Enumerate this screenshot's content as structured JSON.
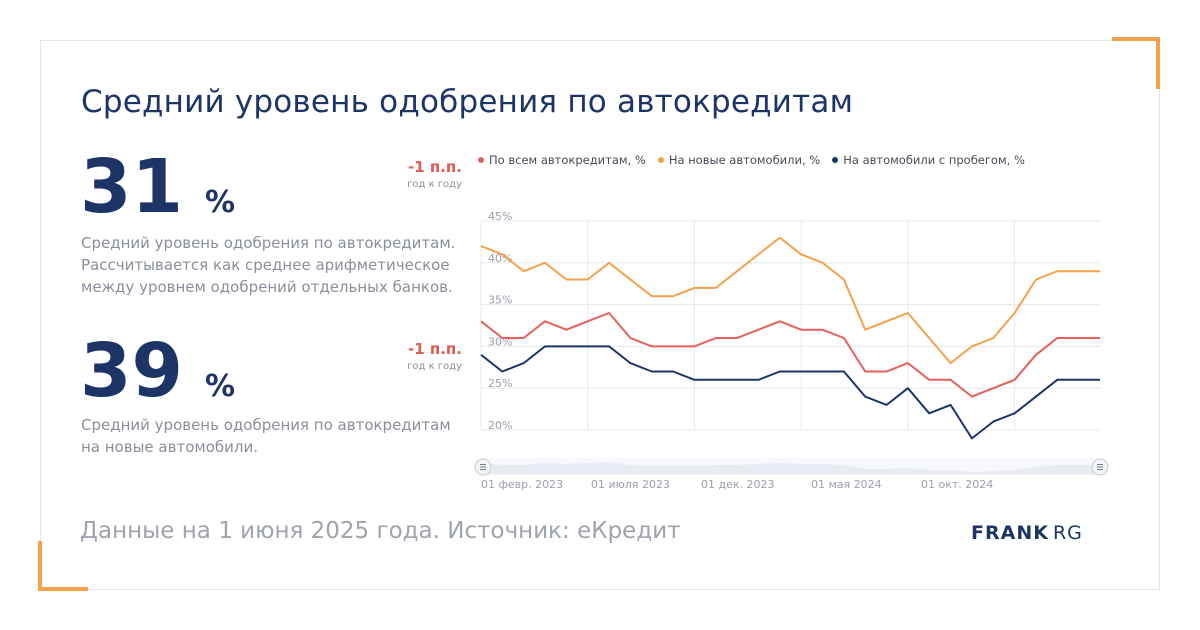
{
  "title": "Средний уровень одобрения по автокредитам",
  "kpis": [
    {
      "value": "31",
      "unit": "%",
      "delta": "-1 п.п.",
      "delta_note": "год к году",
      "description": "Средний уровень одобрения по автокредитам. Рассчитывается как среднее арифметическое между уровнем одобрений отдельных банков."
    },
    {
      "value": "39",
      "unit": "%",
      "delta": "-1 п.п.",
      "delta_note": "год к году",
      "description": "Средний уровень одобрения по автокредитам на новые автомобили."
    }
  ],
  "footer": "Данные на 1 июня 2025 года. Источник: еКредит",
  "logo": {
    "main": "FRANK",
    "suffix": "RG"
  },
  "colors": {
    "all": "#e5605a",
    "new": "#f4a24a",
    "used": "#1d3566",
    "accent": "#f4a24a"
  },
  "chart_data": {
    "type": "line",
    "x_tick_labels": [
      "01 февр. 2023",
      "01 июля 2023",
      "01 дек. 2023",
      "01 мая 2024",
      "01 окт. 2024"
    ],
    "y_tick_labels": [
      "45%",
      "40%",
      "35%",
      "30%",
      "25%",
      "20%"
    ],
    "ylim": [
      20,
      45
    ],
    "x": [
      "2023-01",
      "2023-02",
      "2023-03",
      "2023-04",
      "2023-05",
      "2023-06",
      "2023-07",
      "2023-08",
      "2023-09",
      "2023-10",
      "2023-11",
      "2023-12",
      "2024-01",
      "2024-02",
      "2024-03",
      "2024-04",
      "2024-05",
      "2024-06",
      "2024-07",
      "2024-08",
      "2024-09",
      "2024-10",
      "2024-11",
      "2024-12",
      "2025-01",
      "2025-02",
      "2025-03",
      "2025-04",
      "2025-05",
      "2025-06"
    ],
    "series": [
      {
        "name": "По всем автокредитам, %",
        "color": "#e5605a",
        "values": [
          33,
          31,
          31,
          33,
          32,
          33,
          34,
          31,
          30,
          30,
          30,
          31,
          31,
          32,
          33,
          32,
          32,
          31,
          27,
          27,
          28,
          26,
          26,
          24,
          25,
          26,
          29,
          31,
          31,
          31
        ]
      },
      {
        "name": "На новые автомобили, %",
        "color": "#f4a24a",
        "values": [
          42,
          41,
          39,
          40,
          38,
          38,
          40,
          38,
          36,
          36,
          37,
          37,
          39,
          41,
          43,
          41,
          40,
          38,
          32,
          33,
          34,
          31,
          28,
          30,
          31,
          34,
          38,
          39,
          39,
          39
        ]
      },
      {
        "name": "На автомобили с пробегом, %",
        "color": "#1d3566",
        "values": [
          29,
          27,
          28,
          30,
          30,
          30,
          30,
          28,
          27,
          27,
          26,
          26,
          26,
          26,
          27,
          27,
          27,
          27,
          24,
          23,
          25,
          22,
          23,
          19,
          21,
          22,
          24,
          26,
          26,
          26
        ]
      }
    ],
    "grid": true,
    "legend": "top",
    "navigator": true
  }
}
